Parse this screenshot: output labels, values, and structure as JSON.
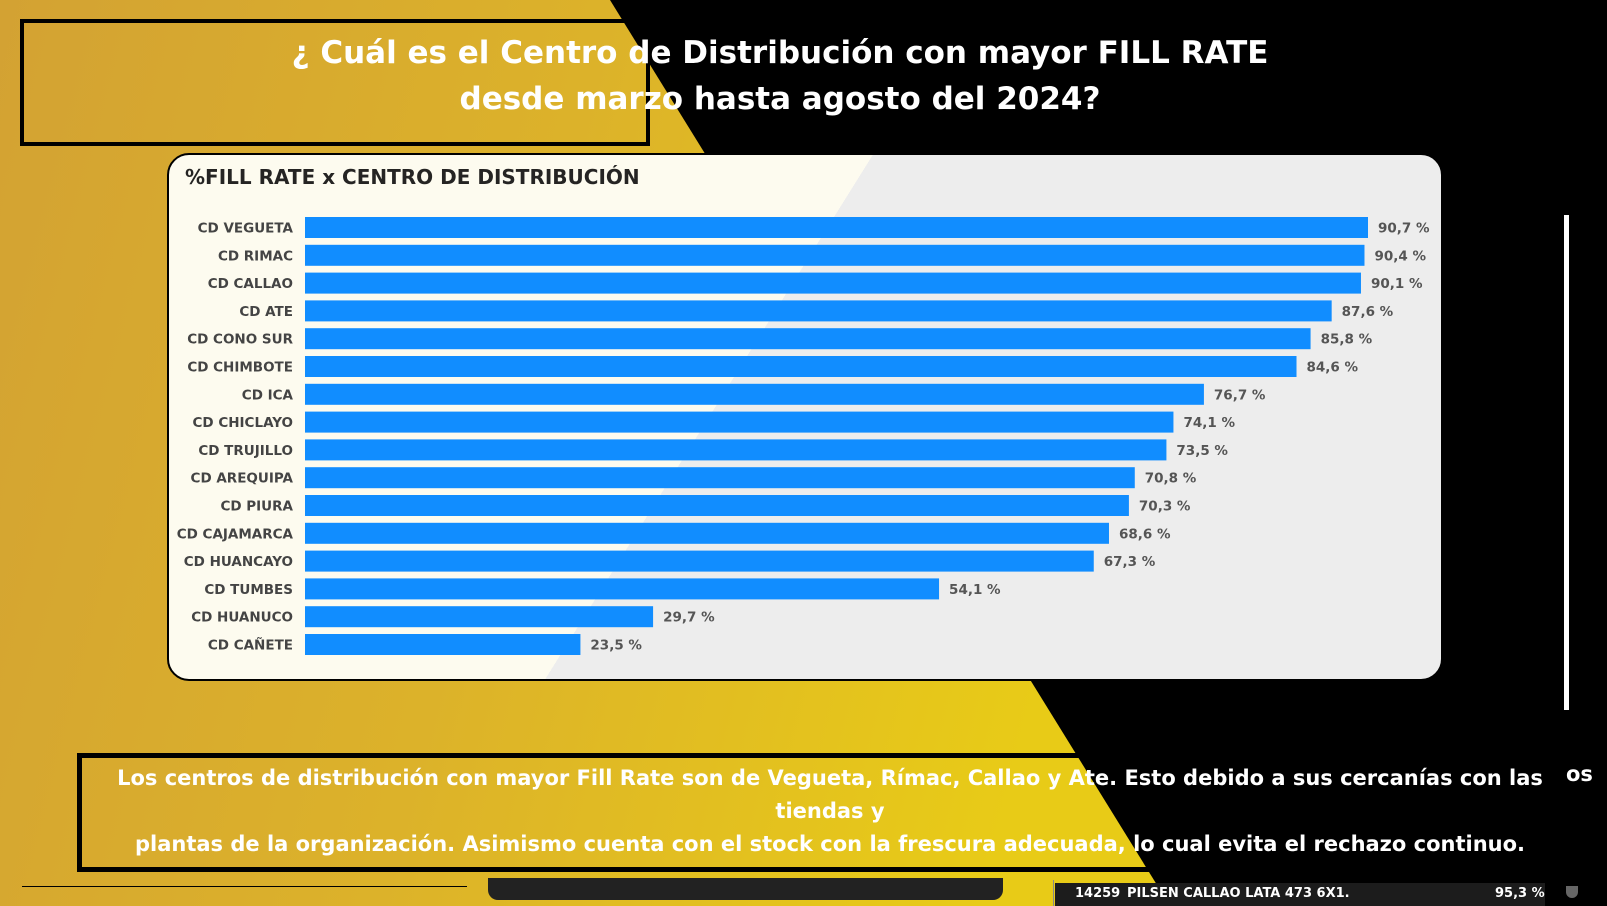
{
  "header": {
    "title_line1": "¿ Cuál es el Centro de Distribución con mayor FILL RATE",
    "title_line2": "desde marzo hasta agosto del 2024?"
  },
  "chart_data": {
    "type": "bar",
    "orientation": "horizontal",
    "title": "%FILL RATE x CENTRO DE DISTRIBUCIÓN",
    "categories": [
      "CD VEGUETA",
      "CD RIMAC",
      "CD CALLAO",
      "CD ATE",
      "CD CONO SUR",
      "CD CHIMBOTE",
      "CD ICA",
      "CD CHICLAYO",
      "CD TRUJILLO",
      "CD AREQUIPA",
      "CD PIURA",
      "CD CAJAMARCA",
      "CD HUANCAYO",
      "CD TUMBES",
      "CD HUANUCO",
      "CD CAÑETE"
    ],
    "values": [
      90.7,
      90.4,
      90.1,
      87.6,
      85.8,
      84.6,
      76.7,
      74.1,
      73.5,
      70.8,
      70.3,
      68.6,
      67.3,
      54.1,
      29.7,
      23.5
    ],
    "value_labels": [
      "90,7 %",
      "90,4 %",
      "90,1 %",
      "87,6 %",
      "85,8 %",
      "84,6 %",
      "76,7 %",
      "74,1 %",
      "73,5 %",
      "70,8 %",
      "70,3 %",
      "68,6 %",
      "67,3 %",
      "54,1 %",
      "29,7 %",
      "23,5 %"
    ],
    "xlim": [
      0,
      90.7
    ],
    "grid": false,
    "bar_color": "#118dff"
  },
  "note": {
    "line1": "Los centros de distribución con mayor Fill Rate son de Vegueta, Rímac, Callao y Ate. Esto debido a sus cercanías con las tiendas y",
    "line2": "plantas de la organización. Asimismo cuenta con el stock con la frescura adecuada, lo cual evita el rechazo continuo.",
    "overflow": "os"
  },
  "background_table": {
    "code": "14259",
    "product": "PILSEN CALLAO LATA 473 6X1.",
    "value": "95,3 %"
  },
  "colors": {
    "gold": "#d4a42c",
    "yellow": "#e6c51a",
    "black": "#000000",
    "bar": "#118dff"
  }
}
